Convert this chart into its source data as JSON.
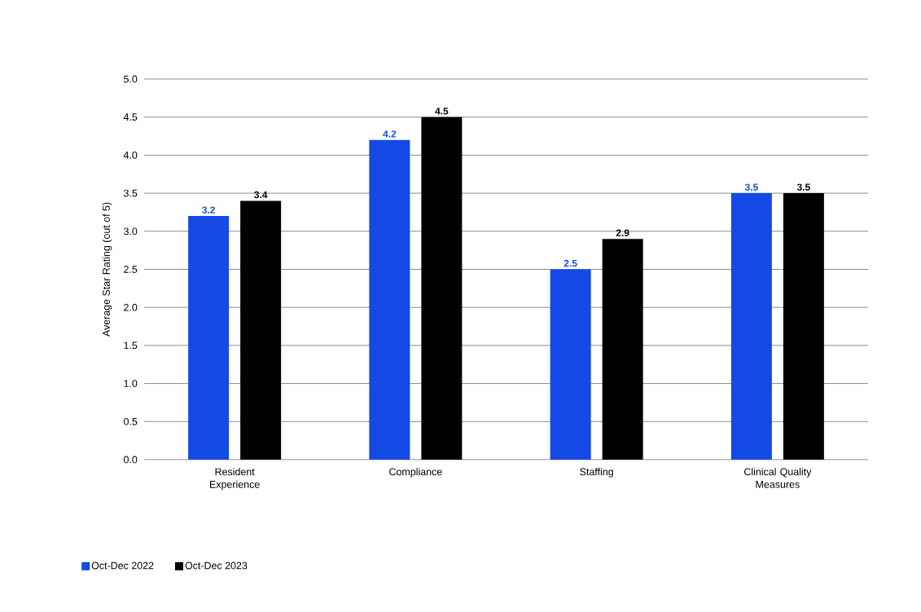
{
  "chart_data": {
    "type": "bar",
    "ylabel": "Average Star Rating (out  of 5)",
    "categories": [
      "Resident Experience",
      "Compliance",
      "Staffing",
      "Clinical Quality Measures"
    ],
    "series": [
      {
        "name": "Oct-Dec 2022",
        "color": "#1449e6",
        "values": [
          3.2,
          4.2,
          2.5,
          3.5
        ]
      },
      {
        "name": "Oct-Dec 2023",
        "color": "#000000",
        "values": [
          3.4,
          4.5,
          2.9,
          3.5
        ]
      }
    ],
    "ylim": [
      0,
      5
    ],
    "yticks": [
      "0.0",
      "0.5",
      "1.0",
      "1.5",
      "2.0",
      "2.5",
      "3.0",
      "3.5",
      "4.0",
      "4.5",
      "5.0"
    ],
    "grid": "y",
    "legend": "bottom left",
    "data_labels": true
  }
}
